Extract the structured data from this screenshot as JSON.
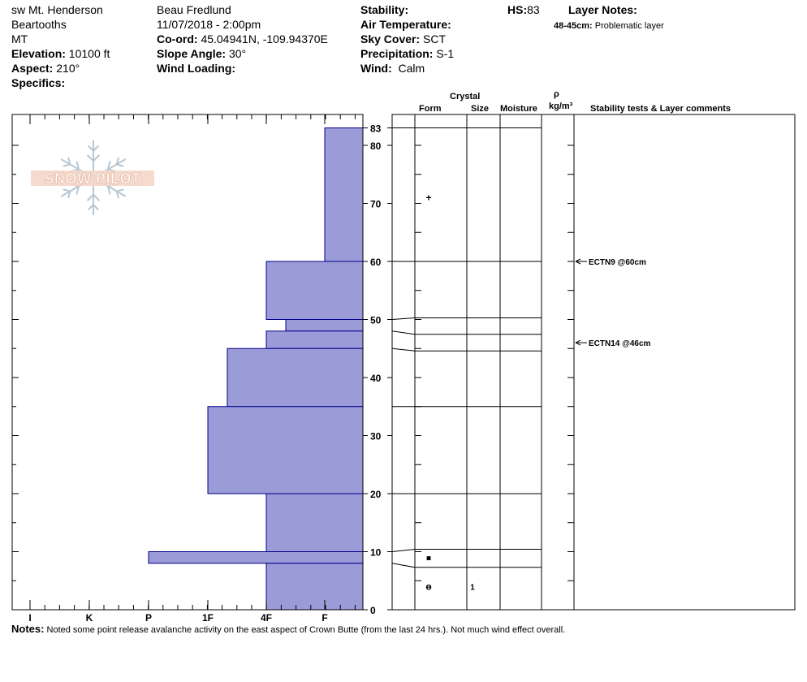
{
  "header": {
    "location": "sw Mt. Henderson",
    "range": "Beartooths",
    "state": "MT",
    "elevation_label": "Elevation:",
    "elevation": "10100 ft",
    "aspect_label": "Aspect:",
    "aspect": "210°",
    "specifics_label": "Specifics:",
    "observer": "Beau  Fredlund",
    "datetime": "11/07/2018 - 2:00pm",
    "coord_label": "Co-ord:",
    "coord": "45.04941N, -109.94370E",
    "slope_label": "Slope Angle:",
    "slope": "30°",
    "wind_loading_label": "Wind Loading:",
    "stability_label": "Stability:",
    "air_temp_label": "Air Temperature:",
    "sky_label": "Sky Cover:",
    "sky": "SCT",
    "precip_label": "Precipitation:",
    "precip": "S-1",
    "wind_label": "Wind:",
    "wind": "Calm",
    "hs_label": "HS:",
    "hs": "83",
    "layer_notes_label": "Layer Notes:",
    "layer_note_range": "48-45cm:",
    "layer_note_text": "Problematic layer"
  },
  "logo_text": "SNOW PILOT",
  "column_headers": {
    "crystal": "Crystal",
    "form": "Form",
    "size": "Size",
    "moisture": "Moisture",
    "rho": "ρ",
    "density_unit": "kg/m³",
    "stability": "Stability tests & Layer comments"
  },
  "notes_label": "Notes:",
  "notes": "Noted some point release avalanche activity on the east aspect of Crown Butte (from the last 24 hrs.).  Not much wind effect overall.",
  "colors": {
    "hardness_fill": "#9b9bd7",
    "hardness_stroke": "#00008b"
  },
  "chart_data": {
    "type": "bar",
    "orientation": "horizontal",
    "title": "",
    "xlabel": "",
    "ylabel": "",
    "hardness_categories": [
      "I",
      "K",
      "P",
      "1F",
      "4F",
      "F"
    ],
    "y_ticks": [
      83,
      80,
      70,
      60,
      50,
      40,
      30,
      20,
      10,
      0
    ],
    "ylim": [
      0,
      83
    ],
    "layers": [
      {
        "top": 83,
        "bottom": 60,
        "hardness": "F"
      },
      {
        "top": 60,
        "bottom": 50,
        "hardness": "4F"
      },
      {
        "top": 50,
        "bottom": 48,
        "hardness": "4F+"
      },
      {
        "top": 48,
        "bottom": 45,
        "hardness": "4F"
      },
      {
        "top": 45,
        "bottom": 35,
        "hardness": "1F+"
      },
      {
        "top": 35,
        "bottom": 20,
        "hardness": "1F"
      },
      {
        "top": 20,
        "bottom": 10,
        "hardness": "4F"
      },
      {
        "top": 10,
        "bottom": 8,
        "hardness": "P"
      },
      {
        "top": 8,
        "bottom": 0,
        "hardness": "4F"
      }
    ],
    "grain_symbols": [
      {
        "depth": 71,
        "form": "+",
        "size": ""
      },
      {
        "depth": 9,
        "form": "■",
        "size": ""
      },
      {
        "depth": 4,
        "form": "ɵ",
        "size": "1"
      }
    ],
    "stability_tests": [
      {
        "depth": 60,
        "label": "ECTN9 @60cm"
      },
      {
        "depth": 46,
        "label": "ECTN14 @46cm"
      }
    ]
  }
}
